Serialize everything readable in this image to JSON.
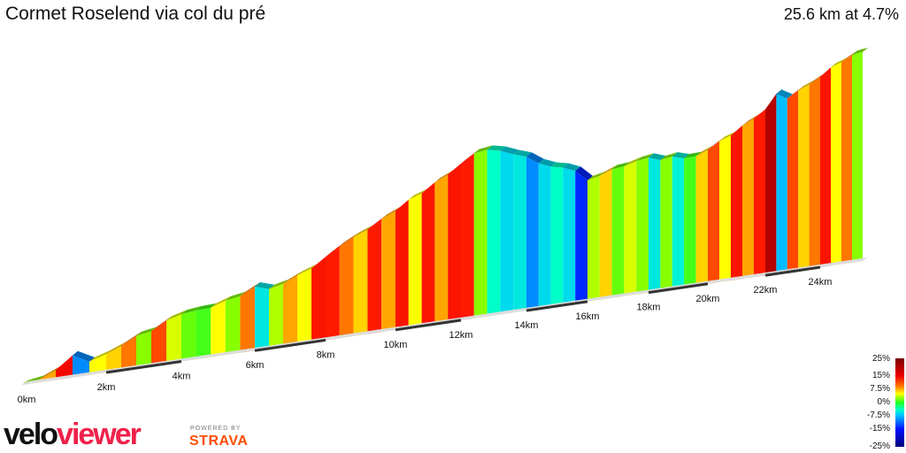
{
  "header": {
    "title": "Cormet Roselend via col du pré",
    "summary": "25.6 km at 4.7%"
  },
  "chart_data": {
    "type": "area",
    "title": "Cormet Roselend via col du pré",
    "subtitle": "25.6 km at 4.7%",
    "distance_km": 25.6,
    "average_gradient_pct": 4.7,
    "segment_length_km": 0.4,
    "gradients_pct": [
      3,
      8,
      14,
      -10,
      6,
      7,
      9,
      3,
      10,
      5,
      2,
      1,
      6,
      3,
      9,
      -5,
      4,
      8,
      6,
      12,
      11,
      9,
      7,
      11,
      8,
      12,
      6,
      12,
      8,
      12,
      11,
      3,
      -3,
      -6,
      -5,
      -10,
      -6,
      -3,
      -6,
      -14,
      4,
      7,
      2,
      5,
      3,
      -5,
      3,
      -4,
      1,
      7,
      10,
      6,
      12,
      8,
      11,
      20,
      -8,
      10,
      7,
      9,
      12,
      6,
      9,
      3
    ],
    "x_ticks_km": [
      0,
      2,
      4,
      6,
      8,
      10,
      12,
      14,
      16,
      18,
      20,
      22,
      24
    ],
    "x_tick_labels": [
      "0km",
      "2km",
      "4km",
      "6km",
      "8km",
      "10km",
      "12km",
      "14km",
      "16km",
      "18km",
      "20km",
      "22km",
      "24km"
    ],
    "legend": {
      "type": "gradient color scale",
      "labels": [
        "25%",
        "15%",
        "7.5%",
        "0%",
        "-7.5%",
        "-15%",
        "-25%"
      ],
      "colors": {
        "25": "#7a0000",
        "15": "#ee0000",
        "7.5": "#ffa500",
        "0": "#22ff22",
        "-7.5": "#00c8ff",
        "-15": "#0010ff",
        "-25": "#00007a"
      }
    }
  },
  "branding": {
    "logo_part1": "velo",
    "logo_part2": "viewer",
    "powered_by": "POWERED BY",
    "strava": "STRAVA",
    "logo_color": "#f0214a",
    "strava_color": "#fc4c02"
  }
}
